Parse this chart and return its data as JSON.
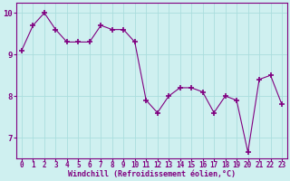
{
  "x": [
    0,
    1,
    2,
    3,
    4,
    5,
    6,
    7,
    8,
    9,
    10,
    11,
    12,
    13,
    14,
    15,
    16,
    17,
    18,
    19,
    20,
    21,
    22,
    23
  ],
  "y": [
    9.1,
    9.7,
    10.0,
    9.6,
    9.3,
    9.3,
    9.3,
    9.7,
    9.6,
    9.6,
    9.3,
    7.9,
    7.6,
    8.0,
    8.2,
    8.2,
    8.1,
    7.6,
    8.0,
    7.9,
    6.65,
    8.4,
    8.5,
    7.8
  ],
  "line_color": "#800080",
  "marker": "+",
  "marker_size": 4,
  "bg_color": "#cff0f0",
  "grid_color": "#aadddd",
  "xlabel": "Windchill (Refroidissement éolien,°C)",
  "xlabel_color": "#800080",
  "tick_color": "#800080",
  "axis_color": "#800080",
  "ylim": [
    6.5,
    10.25
  ],
  "yticks": [
    7,
    8,
    9,
    10
  ],
  "xlim": [
    -0.5,
    23.5
  ],
  "xticks": [
    0,
    1,
    2,
    3,
    4,
    5,
    6,
    7,
    8,
    9,
    10,
    11,
    12,
    13,
    14,
    15,
    16,
    17,
    18,
    19,
    20,
    21,
    22,
    23
  ],
  "tick_fontsize": 5.5,
  "xlabel_fontsize": 6.0,
  "ytick_fontsize": 6.5
}
